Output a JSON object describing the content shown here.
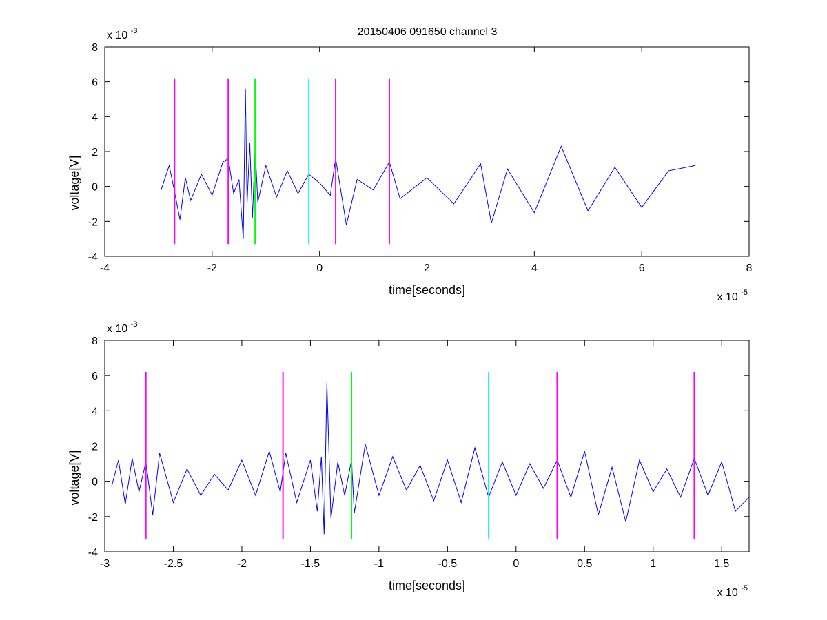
{
  "figure": {
    "title": "20150406 091650 channel 3",
    "background": "#ffffff"
  },
  "chart_data": [
    {
      "type": "line",
      "title": "20150406 091650 channel 3",
      "xlabel": "time[seconds]",
      "ylabel": "voltage[V]",
      "x_exponent_label": "x 10",
      "x_exponent": "-5",
      "y_exponent_label": "x 10",
      "y_exponent": "-3",
      "xlim": [
        -4e-05,
        8e-05
      ],
      "ylim": [
        -0.004,
        0.008
      ],
      "x_ticks": [
        -4e-05,
        -2e-05,
        0,
        2e-05,
        4e-05,
        6e-05,
        8e-05
      ],
      "x_tick_labels": [
        "-4",
        "-2",
        "0",
        "2",
        "4",
        "6",
        "8"
      ],
      "y_ticks": [
        -0.004,
        -0.002,
        0,
        0.002,
        0.004,
        0.006,
        0.008
      ],
      "y_tick_labels": [
        "-4",
        "-2",
        "0",
        "2",
        "4",
        "6",
        "8"
      ],
      "grid": false,
      "series": [
        {
          "color": "#0000ff",
          "x": [
            -2.95e-05,
            -2.8e-05,
            -2.7e-05,
            -2.6e-05,
            -2.5e-05,
            -2.4e-05,
            -2.2e-05,
            -2e-05,
            -1.8e-05,
            -1.7e-05,
            -1.6e-05,
            -1.5e-05,
            -1.42e-05,
            -1.38e-05,
            -1.35e-05,
            -1.3e-05,
            -1.25e-05,
            -1.2e-05,
            -1.15e-05,
            -1e-05,
            -8e-06,
            -6e-06,
            -4e-06,
            -2e-06,
            0,
            2e-06,
            3e-06,
            5e-06,
            7e-06,
            1e-05,
            1.3e-05,
            1.5e-05,
            2e-05,
            2.5e-05,
            3e-05,
            3.2e-05,
            3.5e-05,
            4e-05,
            4.5e-05,
            5e-05,
            5.5e-05,
            6e-05,
            6.5e-05,
            7e-05
          ],
          "y": [
            -0.0002,
            0.0012,
            -0.0003,
            -0.0019,
            0.0005,
            -0.0008,
            0.0007,
            -0.0005,
            0.0014,
            0.0016,
            -0.0004,
            0.0004,
            -0.003,
            0.0056,
            -0.001,
            0.0025,
            -0.0018,
            0.0022,
            -0.0009,
            0.0012,
            -0.0006,
            0.0009,
            -0.0004,
            0.0007,
            0.0002,
            -0.0005,
            0.0016,
            -0.0022,
            0.0004,
            -0.0002,
            0.0014,
            -0.0007,
            0.0005,
            -0.001,
            0.0013,
            -0.0021,
            0.001,
            -0.0015,
            0.0023,
            -0.0014,
            0.0011,
            -0.0012,
            0.0009,
            0.0012
          ]
        }
      ],
      "markers": [
        {
          "x": -2.7e-05,
          "color": "#ff00ff"
        },
        {
          "x": -1.7e-05,
          "color": "#ff00ff"
        },
        {
          "x": -1.2e-05,
          "color": "#00ff00"
        },
        {
          "x": -2e-06,
          "color": "#00ffff"
        },
        {
          "x": 3e-06,
          "color": "#ff00ff"
        },
        {
          "x": 1.3e-05,
          "color": "#ff00ff"
        }
      ],
      "marker_range": [
        -0.0033,
        0.0062
      ]
    },
    {
      "type": "line",
      "title": "",
      "xlabel": "time[seconds]",
      "ylabel": "voltage[V]",
      "x_exponent_label": "x 10",
      "x_exponent": "-5",
      "y_exponent_label": "x 10",
      "y_exponent": "-3",
      "xlim": [
        -3e-05,
        1.7e-05
      ],
      "ylim": [
        -0.004,
        0.008
      ],
      "x_ticks": [
        -3e-05,
        -2.5e-05,
        -2e-05,
        -1.5e-05,
        -1e-05,
        -5e-06,
        0,
        5e-06,
        1e-05,
        1.5e-05
      ],
      "x_tick_labels": [
        "-3",
        "-2.5",
        "-2",
        "-1.5",
        "-1",
        "-0.5",
        "0",
        "0.5",
        "1",
        "1.5"
      ],
      "y_ticks": [
        -0.004,
        -0.002,
        0,
        0.002,
        0.004,
        0.006,
        0.008
      ],
      "y_tick_labels": [
        "-4",
        "-2",
        "0",
        "2",
        "4",
        "6",
        "8"
      ],
      "grid": false,
      "series": [
        {
          "color": "#0000ff",
          "x": [
            -2.95e-05,
            -2.9e-05,
            -2.85e-05,
            -2.8e-05,
            -2.75e-05,
            -2.7e-05,
            -2.65e-05,
            -2.6e-05,
            -2.5e-05,
            -2.4e-05,
            -2.3e-05,
            -2.2e-05,
            -2.1e-05,
            -2e-05,
            -1.9e-05,
            -1.8e-05,
            -1.72e-05,
            -1.68e-05,
            -1.6e-05,
            -1.5e-05,
            -1.45e-05,
            -1.42e-05,
            -1.4e-05,
            -1.38e-05,
            -1.35e-05,
            -1.3e-05,
            -1.25e-05,
            -1.2e-05,
            -1.18e-05,
            -1.1e-05,
            -1e-05,
            -9e-06,
            -8e-06,
            -7e-06,
            -6e-06,
            -5e-06,
            -4e-06,
            -3e-06,
            -2e-06,
            -1e-06,
            0,
            1e-06,
            2e-06,
            3e-06,
            4e-06,
            5e-06,
            6e-06,
            7e-06,
            8e-06,
            9e-06,
            1e-05,
            1.1e-05,
            1.2e-05,
            1.3e-05,
            1.4e-05,
            1.5e-05,
            1.6e-05,
            1.7e-05
          ],
          "y": [
            -0.0003,
            0.0012,
            -0.0013,
            0.0013,
            -0.0006,
            0.0011,
            -0.0019,
            0.0016,
            -0.0012,
            0.0007,
            -0.0008,
            0.0004,
            -0.0005,
            0.0012,
            -0.0008,
            0.0017,
            -0.0006,
            0.0016,
            -0.0012,
            0.0012,
            -0.0017,
            0.0014,
            -0.003,
            0.0056,
            -0.0021,
            0.0011,
            -0.0008,
            0.0012,
            -0.0018,
            0.0021,
            -0.0008,
            0.0014,
            -0.0005,
            0.0009,
            -0.0011,
            0.0012,
            -0.0012,
            0.0019,
            -0.0009,
            0.0011,
            -0.0008,
            0.001,
            -0.0004,
            0.0012,
            -0.0009,
            0.0017,
            -0.0019,
            0.0008,
            -0.0023,
            0.0012,
            -0.0006,
            0.0007,
            -0.0009,
            0.0013,
            -0.0008,
            0.0011,
            -0.0017,
            -0.0009
          ]
        }
      ],
      "markers": [
        {
          "x": -2.7e-05,
          "color": "#ff00ff"
        },
        {
          "x": -1.7e-05,
          "color": "#ff00ff"
        },
        {
          "x": -1.2e-05,
          "color": "#00ff00"
        },
        {
          "x": -2e-06,
          "color": "#00ffff"
        },
        {
          "x": 3e-06,
          "color": "#ff00ff"
        },
        {
          "x": 1.3e-05,
          "color": "#ff00ff"
        }
      ],
      "marker_range": [
        -0.0033,
        0.0062
      ]
    }
  ]
}
